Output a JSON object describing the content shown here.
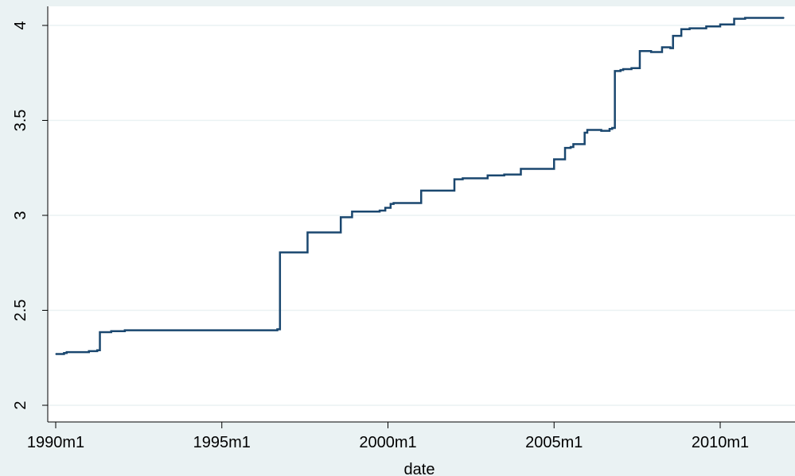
{
  "chart_data": {
    "type": "line",
    "title": "",
    "xlabel": "date",
    "ylabel": "",
    "x_ticks": [
      "1990m1",
      "1995m1",
      "2000m1",
      "2005m1",
      "2010m1"
    ],
    "x_tick_values": [
      1990.0,
      1995.0,
      2000.0,
      2005.0,
      2010.0
    ],
    "y_ticks": [
      "2",
      "2.5",
      "3",
      "3.5",
      "4"
    ],
    "y_tick_values": [
      2,
      2.5,
      3,
      3.5,
      4
    ],
    "xlim": [
      1990.0,
      2012.0
    ],
    "ylim": [
      2,
      4
    ],
    "grid": true,
    "x_grid": false,
    "y_grid": true,
    "background_color": "#eaf2f3",
    "plot_background": "#ffffff",
    "line_color": "#1a476f",
    "series": [
      {
        "x": [
          1990.0,
          1990.17,
          1990.25,
          1990.33,
          1990.92,
          1991.0,
          1991.08,
          1991.25,
          1991.33,
          1991.67,
          1992.0,
          1992.08,
          1996.5,
          1996.67,
          1996.75,
          1997.5,
          1997.58,
          1998.5,
          1998.58,
          1998.83,
          1998.92,
          1999.67,
          1999.75,
          1999.83,
          1999.92,
          2000.08,
          2000.17,
          2000.92,
          2001.0,
          2001.92,
          2002.0,
          2002.17,
          2002.25,
          2002.92,
          2003.0,
          2003.42,
          2003.5,
          2003.92,
          2004.0,
          2004.92,
          2005.0,
          2005.25,
          2005.33,
          2005.5,
          2005.58,
          2005.83,
          2005.92,
          2006.0,
          2006.08,
          2006.42,
          2006.67,
          2006.75,
          2006.83,
          2006.92,
          2007.0,
          2007.08,
          2007.25,
          2007.33,
          2007.5,
          2007.58,
          2007.83,
          2007.92,
          2008.25,
          2008.33,
          2008.5,
          2008.58,
          2008.75,
          2008.83,
          2009.0,
          2009.08,
          2009.5,
          2009.58,
          2009.92,
          2010.0,
          2010.42,
          2010.5,
          2010.75,
          2010.83,
          2011.08,
          2011.17,
          2011.5,
          2011.58,
          2011.92
        ],
        "y": [
          2.27,
          2.27,
          2.275,
          2.28,
          2.28,
          2.285,
          2.285,
          2.29,
          2.385,
          2.39,
          2.39,
          2.395,
          2.395,
          2.4,
          2.805,
          2.805,
          2.91,
          2.91,
          2.99,
          2.99,
          3.02,
          3.02,
          3.025,
          3.025,
          3.04,
          3.06,
          3.065,
          3.065,
          3.13,
          3.13,
          3.19,
          3.19,
          3.195,
          3.195,
          3.21,
          3.21,
          3.215,
          3.215,
          3.245,
          3.245,
          3.295,
          3.295,
          3.355,
          3.36,
          3.375,
          3.375,
          3.435,
          3.45,
          3.45,
          3.445,
          3.455,
          3.46,
          3.76,
          3.76,
          3.765,
          3.77,
          3.77,
          3.775,
          3.775,
          3.865,
          3.865,
          3.86,
          3.885,
          3.885,
          3.88,
          3.945,
          3.945,
          3.98,
          3.98,
          3.985,
          3.985,
          3.995,
          3.995,
          4.005,
          4.035,
          4.035,
          4.04,
          4.04,
          4.04,
          4.04,
          4.04,
          4.04,
          4.04
        ]
      }
    ]
  }
}
